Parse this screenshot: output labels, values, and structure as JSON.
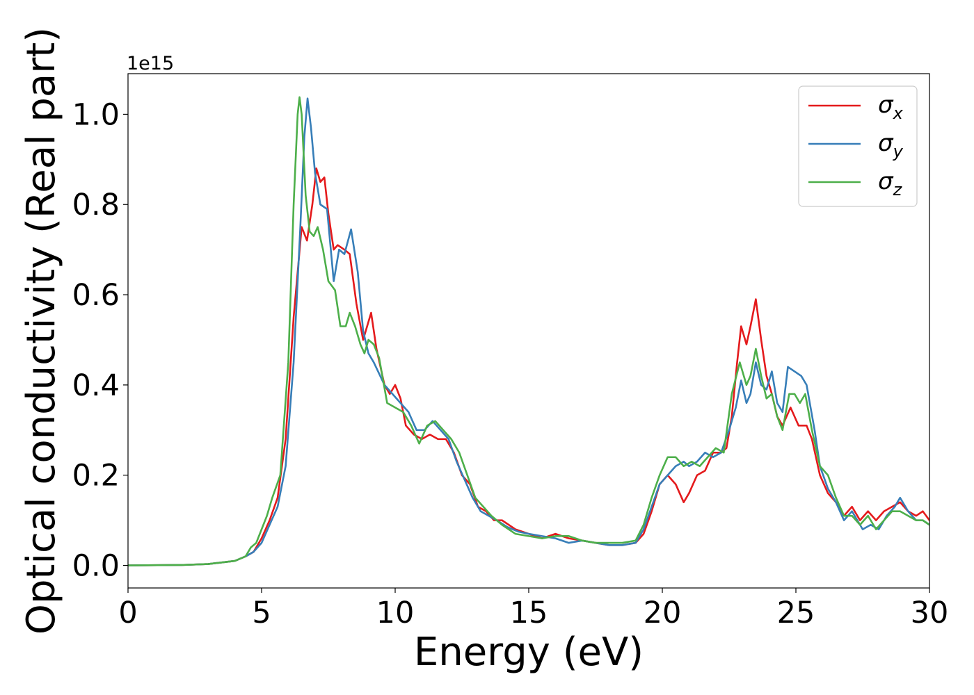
{
  "chart_data": {
    "type": "line",
    "title": "",
    "xlabel": "Energy (eV)",
    "ylabel": "Optical conductivity (Real part)",
    "y_offset_label": "1e15",
    "y_scale": 1000000000000000.0,
    "xlim": [
      0,
      30
    ],
    "ylim": [
      -0.05,
      1.09
    ],
    "x_ticks": [
      0,
      5,
      10,
      15,
      20,
      25,
      30
    ],
    "x_tick_labels": [
      "0",
      "5",
      "10",
      "15",
      "20",
      "25",
      "30"
    ],
    "y_ticks": [
      0.0,
      0.2,
      0.4,
      0.6,
      0.8,
      1.0
    ],
    "y_tick_labels": [
      "0.0",
      "0.2",
      "0.4",
      "0.6",
      "0.8",
      "1.0"
    ],
    "grid": false,
    "legend_position": "top-right",
    "series": [
      {
        "name": "σx",
        "symbol": "σ",
        "subscript": "x",
        "color": "#e41a1c",
        "points": [
          [
            0,
            0
          ],
          [
            2,
            0.001
          ],
          [
            3,
            0.003
          ],
          [
            4,
            0.01
          ],
          [
            4.4,
            0.02
          ],
          [
            4.7,
            0.03
          ],
          [
            5,
            0.06
          ],
          [
            5.3,
            0.1
          ],
          [
            5.6,
            0.15
          ],
          [
            5.9,
            0.28
          ],
          [
            6.2,
            0.55
          ],
          [
            6.5,
            0.75
          ],
          [
            6.7,
            0.72
          ],
          [
            6.9,
            0.8
          ],
          [
            7.05,
            0.88
          ],
          [
            7.2,
            0.85
          ],
          [
            7.35,
            0.86
          ],
          [
            7.5,
            0.78
          ],
          [
            7.7,
            0.7
          ],
          [
            7.85,
            0.71
          ],
          [
            8.1,
            0.7
          ],
          [
            8.3,
            0.69
          ],
          [
            8.55,
            0.58
          ],
          [
            8.8,
            0.5
          ],
          [
            9.1,
            0.56
          ],
          [
            9.3,
            0.48
          ],
          [
            9.6,
            0.4
          ],
          [
            9.8,
            0.38
          ],
          [
            10,
            0.4
          ],
          [
            10.2,
            0.37
          ],
          [
            10.4,
            0.31
          ],
          [
            10.7,
            0.29
          ],
          [
            11,
            0.28
          ],
          [
            11.3,
            0.29
          ],
          [
            11.6,
            0.28
          ],
          [
            11.9,
            0.28
          ],
          [
            12.2,
            0.25
          ],
          [
            12.5,
            0.2
          ],
          [
            12.8,
            0.18
          ],
          [
            13.1,
            0.13
          ],
          [
            13.4,
            0.12
          ],
          [
            13.7,
            0.1
          ],
          [
            14,
            0.1
          ],
          [
            14.5,
            0.08
          ],
          [
            15,
            0.07
          ],
          [
            15.5,
            0.06
          ],
          [
            16,
            0.07
          ],
          [
            16.5,
            0.06
          ],
          [
            17,
            0.055
          ],
          [
            17.5,
            0.05
          ],
          [
            18,
            0.045
          ],
          [
            18.5,
            0.045
          ],
          [
            19,
            0.05
          ],
          [
            19.3,
            0.07
          ],
          [
            19.6,
            0.12
          ],
          [
            19.9,
            0.18
          ],
          [
            20.2,
            0.2
          ],
          [
            20.5,
            0.18
          ],
          [
            20.8,
            0.14
          ],
          [
            21,
            0.16
          ],
          [
            21.3,
            0.2
          ],
          [
            21.6,
            0.21
          ],
          [
            21.9,
            0.25
          ],
          [
            22.2,
            0.25
          ],
          [
            22.4,
            0.26
          ],
          [
            22.6,
            0.33
          ],
          [
            22.8,
            0.45
          ],
          [
            22.95,
            0.53
          ],
          [
            23.15,
            0.49
          ],
          [
            23.3,
            0.53
          ],
          [
            23.5,
            0.59
          ],
          [
            23.7,
            0.5
          ],
          [
            23.9,
            0.42
          ],
          [
            24.1,
            0.38
          ],
          [
            24.3,
            0.33
          ],
          [
            24.5,
            0.31
          ],
          [
            24.8,
            0.35
          ],
          [
            25.1,
            0.31
          ],
          [
            25.4,
            0.31
          ],
          [
            25.6,
            0.28
          ],
          [
            25.9,
            0.2
          ],
          [
            26.2,
            0.16
          ],
          [
            26.5,
            0.14
          ],
          [
            26.8,
            0.11
          ],
          [
            27.1,
            0.13
          ],
          [
            27.4,
            0.1
          ],
          [
            27.7,
            0.12
          ],
          [
            28,
            0.1
          ],
          [
            28.3,
            0.12
          ],
          [
            28.6,
            0.13
          ],
          [
            28.9,
            0.14
          ],
          [
            29.2,
            0.12
          ],
          [
            29.5,
            0.11
          ],
          [
            29.75,
            0.12
          ],
          [
            30,
            0.1
          ]
        ]
      },
      {
        "name": "σy",
        "symbol": "σ",
        "subscript": "y",
        "color": "#377eb8",
        "points": [
          [
            0,
            0
          ],
          [
            2,
            0.001
          ],
          [
            3,
            0.003
          ],
          [
            4,
            0.01
          ],
          [
            4.4,
            0.02
          ],
          [
            4.7,
            0.03
          ],
          [
            5,
            0.05
          ],
          [
            5.3,
            0.09
          ],
          [
            5.6,
            0.13
          ],
          [
            5.9,
            0.22
          ],
          [
            6.2,
            0.45
          ],
          [
            6.45,
            0.75
          ],
          [
            6.6,
            0.95
          ],
          [
            6.72,
            1.035
          ],
          [
            6.85,
            0.97
          ],
          [
            7,
            0.87
          ],
          [
            7.2,
            0.8
          ],
          [
            7.45,
            0.79
          ],
          [
            7.7,
            0.63
          ],
          [
            7.9,
            0.7
          ],
          [
            8.1,
            0.69
          ],
          [
            8.35,
            0.745
          ],
          [
            8.6,
            0.65
          ],
          [
            8.8,
            0.52
          ],
          [
            9.0,
            0.47
          ],
          [
            9.2,
            0.45
          ],
          [
            9.6,
            0.4
          ],
          [
            9.9,
            0.38
          ],
          [
            10.2,
            0.36
          ],
          [
            10.5,
            0.34
          ],
          [
            10.8,
            0.3
          ],
          [
            11.1,
            0.3
          ],
          [
            11.4,
            0.32
          ],
          [
            11.7,
            0.3
          ],
          [
            12,
            0.28
          ],
          [
            12.3,
            0.23
          ],
          [
            12.6,
            0.19
          ],
          [
            12.9,
            0.15
          ],
          [
            13.2,
            0.12
          ],
          [
            13.5,
            0.11
          ],
          [
            13.8,
            0.1
          ],
          [
            14.2,
            0.085
          ],
          [
            14.6,
            0.075
          ],
          [
            15,
            0.07
          ],
          [
            15.5,
            0.065
          ],
          [
            16,
            0.06
          ],
          [
            16.5,
            0.05
          ],
          [
            17,
            0.055
          ],
          [
            17.5,
            0.05
          ],
          [
            18,
            0.045
          ],
          [
            18.5,
            0.045
          ],
          [
            19,
            0.05
          ],
          [
            19.3,
            0.08
          ],
          [
            19.6,
            0.13
          ],
          [
            19.9,
            0.18
          ],
          [
            20.2,
            0.2
          ],
          [
            20.5,
            0.22
          ],
          [
            20.8,
            0.23
          ],
          [
            21,
            0.22
          ],
          [
            21.3,
            0.23
          ],
          [
            21.6,
            0.25
          ],
          [
            21.9,
            0.24
          ],
          [
            22.2,
            0.25
          ],
          [
            22.5,
            0.3
          ],
          [
            22.75,
            0.35
          ],
          [
            22.95,
            0.41
          ],
          [
            23.15,
            0.36
          ],
          [
            23.3,
            0.38
          ],
          [
            23.5,
            0.45
          ],
          [
            23.7,
            0.4
          ],
          [
            23.9,
            0.39
          ],
          [
            24.1,
            0.43
          ],
          [
            24.3,
            0.36
          ],
          [
            24.5,
            0.34
          ],
          [
            24.7,
            0.44
          ],
          [
            24.95,
            0.43
          ],
          [
            25.2,
            0.42
          ],
          [
            25.4,
            0.4
          ],
          [
            25.7,
            0.3
          ],
          [
            25.9,
            0.22
          ],
          [
            26.2,
            0.17
          ],
          [
            26.5,
            0.14
          ],
          [
            26.8,
            0.1
          ],
          [
            27.1,
            0.12
          ],
          [
            27.5,
            0.08
          ],
          [
            27.8,
            0.09
          ],
          [
            28.1,
            0.08
          ],
          [
            28.4,
            0.11
          ],
          [
            28.7,
            0.13
          ],
          [
            28.9,
            0.15
          ],
          [
            29.2,
            0.12
          ],
          [
            29.5,
            0.1
          ],
          [
            29.75,
            0.1
          ],
          [
            30,
            0.09
          ]
        ]
      },
      {
        "name": "σz",
        "symbol": "σ",
        "subscript": "z",
        "color": "#4daf4a",
        "points": [
          [
            0,
            0
          ],
          [
            2,
            0.001
          ],
          [
            3,
            0.003
          ],
          [
            4,
            0.01
          ],
          [
            4.4,
            0.02
          ],
          [
            4.6,
            0.04
          ],
          [
            4.8,
            0.05
          ],
          [
            5,
            0.08
          ],
          [
            5.2,
            0.11
          ],
          [
            5.4,
            0.15
          ],
          [
            5.7,
            0.2
          ],
          [
            6.0,
            0.45
          ],
          [
            6.2,
            0.8
          ],
          [
            6.35,
            1.0
          ],
          [
            6.42,
            1.038
          ],
          [
            6.5,
            1.0
          ],
          [
            6.65,
            0.82
          ],
          [
            6.8,
            0.74
          ],
          [
            6.95,
            0.73
          ],
          [
            7.1,
            0.75
          ],
          [
            7.3,
            0.7
          ],
          [
            7.5,
            0.63
          ],
          [
            7.75,
            0.61
          ],
          [
            7.95,
            0.53
          ],
          [
            8.15,
            0.53
          ],
          [
            8.3,
            0.56
          ],
          [
            8.5,
            0.53
          ],
          [
            8.7,
            0.49
          ],
          [
            8.85,
            0.47
          ],
          [
            9.0,
            0.5
          ],
          [
            9.2,
            0.49
          ],
          [
            9.4,
            0.46
          ],
          [
            9.7,
            0.36
          ],
          [
            10.0,
            0.35
          ],
          [
            10.3,
            0.34
          ],
          [
            10.6,
            0.31
          ],
          [
            10.9,
            0.27
          ],
          [
            11.2,
            0.31
          ],
          [
            11.5,
            0.32
          ],
          [
            11.8,
            0.3
          ],
          [
            12.1,
            0.28
          ],
          [
            12.4,
            0.25
          ],
          [
            12.7,
            0.2
          ],
          [
            13.0,
            0.15
          ],
          [
            13.3,
            0.13
          ],
          [
            13.6,
            0.11
          ],
          [
            14,
            0.09
          ],
          [
            14.5,
            0.07
          ],
          [
            15,
            0.065
          ],
          [
            15.5,
            0.06
          ],
          [
            16,
            0.065
          ],
          [
            16.5,
            0.065
          ],
          [
            17,
            0.055
          ],
          [
            17.5,
            0.05
          ],
          [
            18,
            0.05
          ],
          [
            18.5,
            0.05
          ],
          [
            19,
            0.055
          ],
          [
            19.3,
            0.09
          ],
          [
            19.6,
            0.15
          ],
          [
            19.9,
            0.2
          ],
          [
            20.2,
            0.24
          ],
          [
            20.5,
            0.24
          ],
          [
            20.8,
            0.22
          ],
          [
            21.1,
            0.23
          ],
          [
            21.4,
            0.22
          ],
          [
            21.7,
            0.24
          ],
          [
            22,
            0.26
          ],
          [
            22.3,
            0.25
          ],
          [
            22.6,
            0.38
          ],
          [
            22.9,
            0.45
          ],
          [
            23.15,
            0.4
          ],
          [
            23.3,
            0.42
          ],
          [
            23.5,
            0.48
          ],
          [
            23.7,
            0.42
          ],
          [
            23.9,
            0.37
          ],
          [
            24.1,
            0.38
          ],
          [
            24.3,
            0.33
          ],
          [
            24.5,
            0.3
          ],
          [
            24.75,
            0.38
          ],
          [
            24.95,
            0.38
          ],
          [
            25.15,
            0.36
          ],
          [
            25.35,
            0.38
          ],
          [
            25.6,
            0.3
          ],
          [
            25.9,
            0.22
          ],
          [
            26.2,
            0.2
          ],
          [
            26.5,
            0.15
          ],
          [
            26.8,
            0.11
          ],
          [
            27.1,
            0.11
          ],
          [
            27.4,
            0.09
          ],
          [
            27.7,
            0.11
          ],
          [
            28,
            0.08
          ],
          [
            28.3,
            0.1
          ],
          [
            28.6,
            0.12
          ],
          [
            28.9,
            0.12
          ],
          [
            29.2,
            0.11
          ],
          [
            29.5,
            0.1
          ],
          [
            29.75,
            0.1
          ],
          [
            30,
            0.09
          ]
        ]
      }
    ]
  }
}
